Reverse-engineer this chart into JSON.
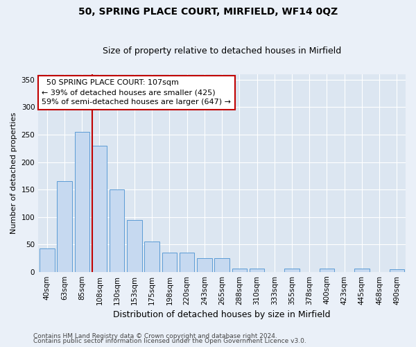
{
  "title1": "50, SPRING PLACE COURT, MIRFIELD, WF14 0QZ",
  "title2": "Size of property relative to detached houses in Mirfield",
  "xlabel": "Distribution of detached houses by size in Mirfield",
  "ylabel": "Number of detached properties",
  "categories": [
    "40sqm",
    "63sqm",
    "85sqm",
    "108sqm",
    "130sqm",
    "153sqm",
    "175sqm",
    "198sqm",
    "220sqm",
    "243sqm",
    "265sqm",
    "288sqm",
    "310sqm",
    "333sqm",
    "355sqm",
    "378sqm",
    "400sqm",
    "423sqm",
    "445sqm",
    "468sqm",
    "490sqm"
  ],
  "values": [
    42,
    165,
    255,
    230,
    150,
    95,
    55,
    35,
    35,
    25,
    25,
    6,
    6,
    0,
    6,
    0,
    6,
    0,
    6,
    0,
    5
  ],
  "bar_color": "#c6d9f0",
  "bar_edge_color": "#5b9bd5",
  "vline_x_index": 3,
  "vline_color": "#c00000",
  "annotation_text": "  50 SPRING PLACE COURT: 107sqm\n← 39% of detached houses are smaller (425)\n59% of semi-detached houses are larger (647) →",
  "annotation_box_color": "white",
  "annotation_box_edge": "#c00000",
  "ylim": [
    0,
    360
  ],
  "yticks": [
    0,
    50,
    100,
    150,
    200,
    250,
    300,
    350
  ],
  "footer1": "Contains HM Land Registry data © Crown copyright and database right 2024.",
  "footer2": "Contains public sector information licensed under the Open Government Licence v3.0.",
  "bg_color": "#eaf0f8",
  "plot_bg_color": "#dce6f1",
  "title1_fontsize": 10,
  "title2_fontsize": 9,
  "axis_label_fontsize": 8,
  "tick_fontsize": 7.5,
  "annotation_fontsize": 8,
  "footer_fontsize": 6.5
}
